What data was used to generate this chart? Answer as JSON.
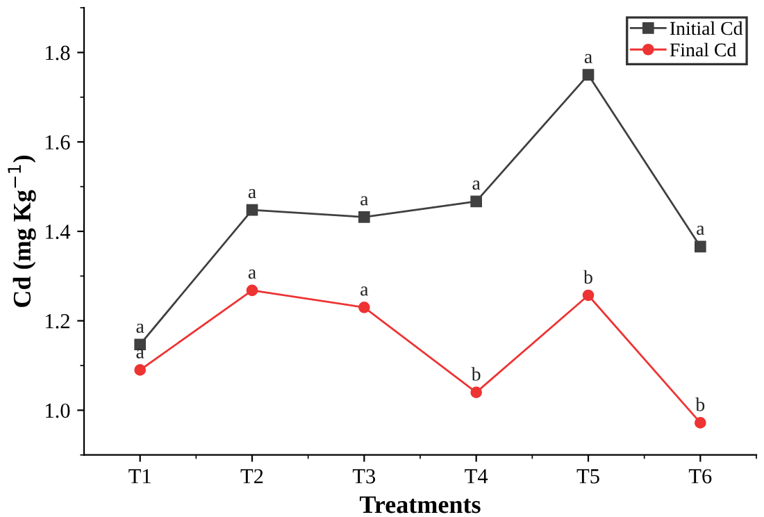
{
  "chart_data": {
    "type": "line",
    "xlabel": "Treatments",
    "ylabel": "Cd (mg Kg$^{−1}$)",
    "categories": [
      "T1",
      "T2",
      "T3",
      "T4",
      "T5",
      "T6"
    ],
    "series": [
      {
        "name": "Initial Cd",
        "color": "#404040",
        "marker": "square",
        "values": [
          1.147,
          1.448,
          1.432,
          1.467,
          1.75,
          1.366
        ]
      },
      {
        "name": "Final Cd",
        "color": "#ee3333",
        "marker": "circle",
        "values": [
          1.09,
          1.268,
          1.23,
          1.04,
          1.257,
          0.972
        ]
      }
    ],
    "ylim": [
      0.9,
      1.9
    ],
    "yticks": [
      {
        "value": 1.0,
        "label": "1.0"
      },
      1.2,
      1.4,
      1.6,
      1.8
    ],
    "annotations": [
      {
        "text": "a",
        "x": "T1",
        "y": 1.147
      },
      {
        "text": "a",
        "x": "T2",
        "y": 1.448
      },
      {
        "text": "a",
        "x": "T3",
        "y": 1.432
      },
      {
        "text": "a",
        "x": "T4",
        "y": 1.467
      },
      {
        "text": "a",
        "x": "T5",
        "y": 1.75
      },
      {
        "text": "a",
        "x": "T6",
        "y": 1.366
      },
      {
        "text": "a",
        "x": "T1",
        "y": 1.09
      },
      {
        "text": "a",
        "x": "T2",
        "y": 1.268
      },
      {
        "text": "a",
        "x": "T3",
        "y": 1.23
      },
      {
        "text": "b",
        "x": "T4",
        "y": 1.04
      },
      {
        "text": "b",
        "x": "T5",
        "y": 1.257
      },
      {
        "text": "b",
        "x": "T6",
        "y": 0.972
      }
    ],
    "grid": false,
    "legend": "top right",
    "line_style": "solid"
  }
}
